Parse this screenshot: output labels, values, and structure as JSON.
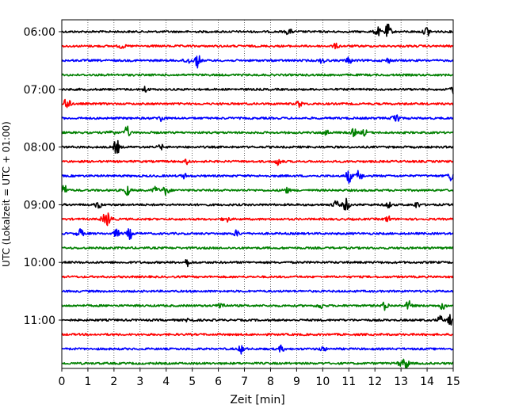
{
  "chart_data": {
    "type": "line",
    "title": "",
    "xlabel": "Zeit  [min]",
    "ylabel": "UTC (Lokalzeit = UTC + 01:00)",
    "xlim": [
      0,
      15
    ],
    "x_ticks": [
      0,
      1,
      2,
      3,
      4,
      5,
      6,
      7,
      8,
      9,
      10,
      11,
      12,
      13,
      14,
      15
    ],
    "x_tick_labels": [
      "0",
      "1",
      "2",
      "3",
      "4",
      "5",
      "6",
      "7",
      "8",
      "9",
      "10",
      "11",
      "12",
      "13",
      "14",
      "15"
    ],
    "y_ticks": [
      "06:00",
      "07:00",
      "08:00",
      "09:00",
      "10:00",
      "11:00"
    ],
    "grid": "vertical dotted lines at each minute",
    "trace_interval_minutes": 15,
    "color_cycle": [
      "#000000",
      "#ff0000",
      "#0000ff",
      "#008000"
    ],
    "traces": [
      {
        "start": "06:00",
        "events": [
          [
            12.5,
            1.0
          ],
          [
            14.0,
            0.7
          ],
          [
            12.1,
            0.6
          ],
          [
            8.7,
            0.4
          ]
        ]
      },
      {
        "start": "06:15",
        "events": [
          [
            10.5,
            0.3
          ],
          [
            2.3,
            0.3
          ]
        ]
      },
      {
        "start": "06:30",
        "events": [
          [
            5.2,
            0.9
          ],
          [
            4.8,
            0.5
          ],
          [
            10.0,
            0.4
          ],
          [
            11.0,
            0.4
          ],
          [
            12.5,
            0.3
          ]
        ]
      },
      {
        "start": "06:45",
        "events": []
      },
      {
        "start": "07:00",
        "events": [
          [
            15.0,
            0.6
          ],
          [
            3.2,
            0.4
          ]
        ]
      },
      {
        "start": "07:15",
        "events": [
          [
            0.2,
            1.0
          ],
          [
            9.1,
            0.4
          ]
        ]
      },
      {
        "start": "07:30",
        "events": [
          [
            12.8,
            1.0
          ],
          [
            3.8,
            0.4
          ]
        ]
      },
      {
        "start": "07:45",
        "events": [
          [
            2.5,
            0.8
          ],
          [
            1.9,
            0.5
          ],
          [
            10.1,
            0.5
          ],
          [
            11.2,
            0.5
          ],
          [
            11.6,
            0.4
          ]
        ]
      },
      {
        "start": "08:00",
        "events": [
          [
            2.1,
            1.0
          ],
          [
            3.8,
            0.3
          ]
        ]
      },
      {
        "start": "08:15",
        "events": [
          [
            8.3,
            0.5
          ],
          [
            4.8,
            0.3
          ]
        ]
      },
      {
        "start": "08:30",
        "events": [
          [
            11.0,
            0.9
          ],
          [
            11.4,
            0.8
          ],
          [
            14.9,
            0.6
          ],
          [
            4.7,
            0.3
          ]
        ]
      },
      {
        "start": "08:45",
        "events": [
          [
            0.1,
            0.8
          ],
          [
            2.5,
            0.7
          ],
          [
            4.0,
            0.7
          ],
          [
            3.6,
            0.5
          ],
          [
            8.6,
            0.4
          ]
        ]
      },
      {
        "start": "09:00",
        "events": [
          [
            10.9,
            0.9
          ],
          [
            1.4,
            0.5
          ],
          [
            10.5,
            0.5
          ],
          [
            12.5,
            0.4
          ],
          [
            13.6,
            0.4
          ]
        ]
      },
      {
        "start": "09:15",
        "events": [
          [
            1.8,
            0.9
          ],
          [
            1.6,
            0.5
          ],
          [
            6.3,
            0.4
          ],
          [
            12.5,
            0.4
          ]
        ]
      },
      {
        "start": "09:30",
        "events": [
          [
            0.7,
            0.6
          ],
          [
            2.6,
            0.7
          ],
          [
            2.1,
            0.5
          ],
          [
            6.7,
            0.4
          ]
        ]
      },
      {
        "start": "09:45",
        "events": []
      },
      {
        "start": "10:00",
        "events": [
          [
            4.8,
            0.5
          ]
        ]
      },
      {
        "start": "10:15",
        "events": []
      },
      {
        "start": "10:30",
        "events": []
      },
      {
        "start": "10:45",
        "events": [
          [
            6.1,
            0.6
          ],
          [
            12.4,
            0.6
          ],
          [
            13.3,
            0.6
          ],
          [
            14.6,
            0.5
          ],
          [
            9.9,
            0.4
          ]
        ]
      },
      {
        "start": "11:00",
        "events": [
          [
            14.9,
            0.7
          ],
          [
            14.5,
            0.5
          ],
          [
            4.9,
            0.4
          ]
        ]
      },
      {
        "start": "11:15",
        "events": []
      },
      {
        "start": "11:30",
        "events": [
          [
            6.9,
            0.6
          ],
          [
            8.4,
            0.4
          ],
          [
            10.0,
            0.3
          ]
        ]
      },
      {
        "start": "11:45",
        "events": [
          [
            13.2,
            0.7
          ],
          [
            13.0,
            0.4
          ]
        ]
      }
    ]
  }
}
